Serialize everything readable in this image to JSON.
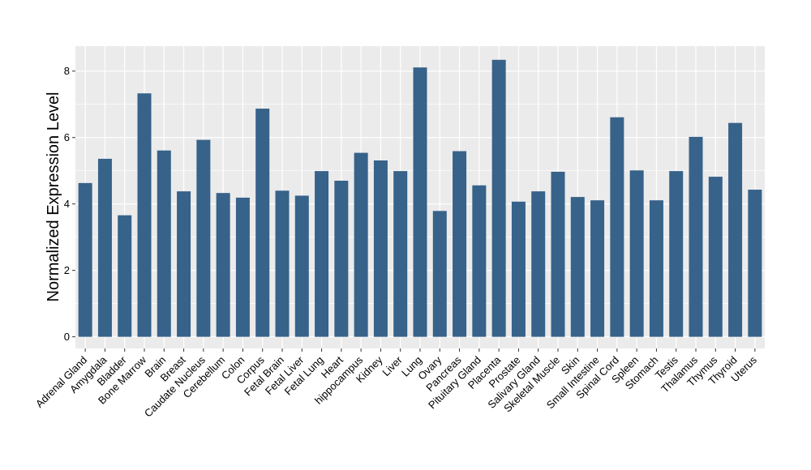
{
  "chart_data": {
    "type": "bar",
    "title": "",
    "xlabel": "",
    "ylabel": "Normalized Expression Level",
    "ylim": [
      -0.35,
      8.75
    ],
    "yticks": [
      0,
      2,
      4,
      6,
      8
    ],
    "grid": true,
    "legend": "none",
    "colors": {
      "bar": "#37628a",
      "panel": "#ebebeb",
      "grid": "#ffffff"
    },
    "categories": [
      "Adrenal Gland",
      "Amygdala",
      "Bladder",
      "Bone Marrow",
      "Brain",
      "Breast",
      "Caudate Nucleus",
      "Cerebellum",
      "Colon",
      "Corpus",
      "Fetal Brain",
      "Fetal Liver",
      "Fetal Lung",
      "Heart",
      "hippocampus",
      "Kidney",
      "Liver",
      "Lung",
      "Ovary",
      "Pancreas",
      "Pituitary Gland",
      "Placenta",
      "Prostate",
      "Salivary Gland",
      "Skeletal Muscle",
      "Skin",
      "Small Intestine",
      "Spinal Cord",
      "Spleen",
      "Stomach",
      "Testis",
      "Thalamus",
      "Thymus",
      "Thyroid",
      "Uterus"
    ],
    "values": [
      4.63,
      5.36,
      3.66,
      7.33,
      5.61,
      4.38,
      5.93,
      4.33,
      4.19,
      6.87,
      4.4,
      4.25,
      4.99,
      4.7,
      5.54,
      5.31,
      4.99,
      8.11,
      3.79,
      5.59,
      4.56,
      8.34,
      4.07,
      4.38,
      4.97,
      4.21,
      4.11,
      6.61,
      5.01,
      4.11,
      4.99,
      6.02,
      4.82,
      6.44,
      4.43
    ]
  }
}
